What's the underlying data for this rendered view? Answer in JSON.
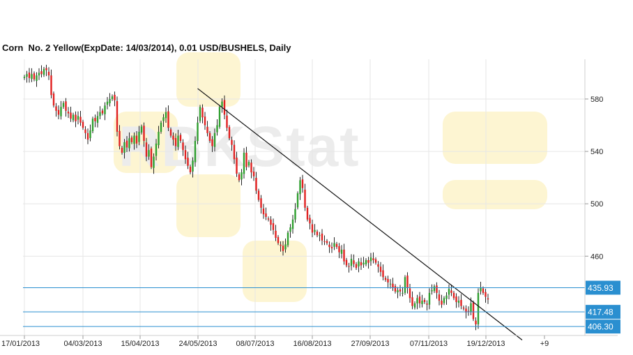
{
  "chart_data": {
    "type": "candlestick",
    "title": "Corn  No. 2 Yellow(ExpDate: 14/03/2014), 0.01 USD/BUSHELS, Daily",
    "watermark": "RBKStat",
    "x_tick_labels": [
      "17/01/2013",
      "04/03/2013",
      "15/04/2013",
      "24/05/2013",
      "08/07/2013",
      "16/08/2013",
      "27/09/2013",
      "07/11/2013",
      "19/12/2013",
      "+9"
    ],
    "y_ticks": [
      460,
      500,
      540,
      580
    ],
    "ylim": [
      400,
      605
    ],
    "grid": true,
    "colors": {
      "up": "#2e9e2e",
      "down": "#e02020",
      "level": "#2a8fd0",
      "trend": "#111111"
    },
    "levels": [
      {
        "value": 435.93,
        "label": "435.93"
      },
      {
        "value": 417.48,
        "label": "417.48"
      },
      {
        "value": 406.3,
        "label": "406.30"
      }
    ],
    "trendline": {
      "start": {
        "index": 71,
        "value": 588
      },
      "end": {
        "index": 204,
        "value": 396
      }
    },
    "closes": [
      597,
      599,
      596,
      599,
      595,
      598,
      600,
      599,
      603,
      602,
      598,
      583,
      575,
      571,
      568,
      574,
      577,
      571,
      569,
      565,
      568,
      563,
      567,
      562,
      558,
      554,
      549,
      556,
      565,
      563,
      567,
      570,
      569,
      575,
      578,
      580,
      582,
      579,
      555,
      544,
      539,
      547,
      543,
      550,
      547,
      552,
      546,
      555,
      559,
      548,
      536,
      541,
      528,
      536,
      546,
      555,
      562,
      566,
      570,
      558,
      552,
      549,
      544,
      552,
      548,
      541,
      534,
      529,
      524,
      533,
      548,
      562,
      574,
      566,
      560,
      554,
      548,
      544,
      554,
      560,
      574,
      578,
      568,
      558,
      550,
      545,
      534,
      523,
      518,
      524,
      539,
      528,
      532,
      524,
      521,
      510,
      503,
      497,
      492,
      490,
      488,
      484,
      480,
      474,
      470,
      468,
      464,
      469,
      478,
      482,
      488,
      496,
      508,
      518,
      512,
      497,
      488,
      485,
      478,
      480,
      476,
      476,
      472,
      471,
      470,
      467,
      466,
      470,
      467,
      463,
      465,
      456,
      453,
      452,
      458,
      454,
      451,
      456,
      453,
      455,
      457,
      455,
      459,
      457,
      455,
      452,
      448,
      444,
      442,
      440,
      439,
      436,
      433,
      434,
      433,
      432,
      444,
      436,
      428,
      422,
      424,
      428,
      424,
      426,
      425,
      423,
      432,
      434,
      437,
      432,
      426,
      423,
      428,
      430,
      435,
      432,
      428,
      425,
      426,
      422,
      420,
      417,
      418,
      424,
      412,
      408,
      432,
      436,
      432,
      429,
      427
    ]
  }
}
